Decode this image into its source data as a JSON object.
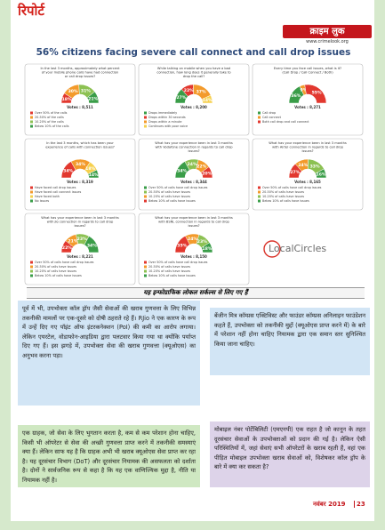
{
  "header": {
    "section": "रिपोर्ट",
    "brand": "क्राइम लुक",
    "url": "www.crimelook.org"
  },
  "title": "56% citizens facing severe call connect and call drop issues",
  "panels": [
    {
      "question": "In the last 3 months, approximately what percent of your mobile phone calls have had connection or call drop issues?",
      "votes": "Votes : 8,511",
      "segments": [
        {
          "value": 18,
          "label": "18%",
          "color": "#e2382f"
        },
        {
          "value": 30,
          "label": "30%",
          "color": "#f39a2b"
        },
        {
          "value": 31,
          "label": "31%",
          "color": "#8cc152"
        },
        {
          "value": 21,
          "label": "21%",
          "color": "#3a9d48"
        }
      ],
      "legend": [
        "Over 50% of the calls",
        "20-50% of the calls",
        "10-20% of the calls",
        "Below 10% of the calls"
      ]
    },
    {
      "question": "While talking on mobile when you have a bad connection, how long does it generally take to drop the call?",
      "votes": "Votes : 8,200",
      "segments": [
        {
          "value": 27,
          "label": "27%",
          "color": "#3a9d48"
        },
        {
          "value": 22,
          "label": "22%",
          "color": "#e2382f"
        },
        {
          "value": 37,
          "label": "37%",
          "color": "#f39a2b"
        },
        {
          "value": 14,
          "label": "14%",
          "color": "#f6d04d"
        }
      ],
      "legend": [
        "Drops immediately",
        "Drops within 30 seconds",
        "Drops within a minute",
        "Continues with poor voice"
      ]
    },
    {
      "question": "Every time you face call issues, what is it? (Call Drop / Call Connect / Both)",
      "votes": "Votes : 8,271",
      "segments": [
        {
          "value": 36,
          "label": "36%",
          "color": "#3a9d48"
        },
        {
          "value": 9,
          "label": "9%",
          "color": "#f39a2b"
        },
        {
          "value": 55,
          "label": "55%",
          "color": "#e2382f"
        }
      ],
      "legend": [
        "Call drop",
        "Call connect",
        "Both call drop and call connect"
      ]
    },
    {
      "question": "In the last 3 months, which has been your experience of calls with connection issues?",
      "votes": "Votes : 8,319",
      "segments": [
        {
          "value": 34,
          "label": "34%",
          "color": "#e2382f"
        },
        {
          "value": 34,
          "label": "34%",
          "color": "#f39a2b"
        },
        {
          "value": 18,
          "label": "18%",
          "color": "#f6d04d"
        },
        {
          "value": 14,
          "label": "14%",
          "color": "#3a9d48"
        }
      ],
      "legend": [
        "Have faced call drop issues",
        "Have faced call connect issues",
        "Have faced both",
        "No issues"
      ]
    },
    {
      "question": "What has your experience been in last 3 months with Vodafone connection in regards to call drop issues?",
      "votes": "Votes : 8,344",
      "segments": [
        {
          "value": 34,
          "label": "34%",
          "color": "#3a9d48"
        },
        {
          "value": 24,
          "label": "24%",
          "color": "#8cc152"
        },
        {
          "value": 22,
          "label": "22%",
          "color": "#f39a2b"
        },
        {
          "value": 20,
          "label": "20%",
          "color": "#e2382f"
        }
      ],
      "legend": [
        "Over 50% of calls have call drop issues",
        "20-50% of calls have issues",
        "10-20% of calls have issues",
        "Below 10% of calls have issues"
      ]
    },
    {
      "question": "What has your experience been in last 3 months with Airtel connection in regards to call drop issues?",
      "votes": "Votes : 8,165",
      "segments": [
        {
          "value": 27,
          "label": "27%",
          "color": "#e2382f"
        },
        {
          "value": 24,
          "label": "24%",
          "color": "#f39a2b"
        },
        {
          "value": 33,
          "label": "33%",
          "color": "#8cc152"
        },
        {
          "value": 16,
          "label": "16%",
          "color": "#3a9d48"
        }
      ],
      "legend": [
        "Over 50% of calls have call drop issues",
        "20-50% of calls have issues",
        "10-20% of calls have issues",
        "Below 10% of calls have issues"
      ]
    },
    {
      "question": "What has your experience been in last 3 months with Jio connection in regards to call drop issues?",
      "votes": "Votes : 8,221",
      "segments": [
        {
          "value": 22,
          "label": "22%",
          "color": "#e2382f"
        },
        {
          "value": 21,
          "label": "21%",
          "color": "#f39a2b"
        },
        {
          "value": 23,
          "label": "23%",
          "color": "#8cc152"
        },
        {
          "value": 34,
          "label": "34%",
          "color": "#3a9d48"
        }
      ],
      "legend": [
        "Over 50% of calls have call drop issues",
        "20-50% of calls have issues",
        "10-20% of calls have issues",
        "Below 10% of calls have issues"
      ]
    },
    {
      "question": "What has your experience been in last 3 months with BSNL connection in regards to call drop issues?",
      "votes": "Votes : 8,150",
      "segments": [
        {
          "value": 35,
          "label": "35%",
          "color": "#e2382f"
        },
        {
          "value": 24,
          "label": "24%",
          "color": "#f39a2b"
        },
        {
          "value": 23,
          "label": "23%",
          "color": "#8cc152"
        },
        {
          "value": 18,
          "label": "18%",
          "color": "#3a9d48"
        }
      ],
      "legend": [
        "Over 50% of calls have call drop issues",
        "20-50% of calls have issues",
        "10-20% of calls have issues",
        "Below 10% of calls have issues"
      ]
    }
  ],
  "logo": "LocalCircles",
  "caption": "यह इन्फोग्राफिक लोकल सर्कल्स से लिए गए हैं",
  "paragraphs": [
    "पूर्व में भी, उपभोक्ता कॉल ड्रॉप जैसी सेवाओं की खराब गुणवत्ता के लिए विभिन्न तकनीकी मामलों पर एक-दूसरे को दोषी ठहराते रहे हैं। RJio ने एक कारण के रूप में उन्हें दिए गए पॉइंट ऑफ इंटरकनेक्शन (PoI) की कमी का आरोप लगाया। लेकिन एयरटेल, वोडाफोन-आइडिया द्वारा पलटवार किया गया था क्योंकि पर्याप्त दिए गए हैं। इस झगड़े में, उपभोक्ता सेवा की खराब गुणवत्ता (क्यूओएस) का अनुभव करना पड़ा।",
    "बेंजीन मित्र कॉम्प्रस एक्टिविस्ट और फाउंडर कॉम्प्रस अनिलाइन फाउंडेशन कहते हैं, उपभोक्ता को तकनीकी मुद्दों (क्यूओएस प्राप्त करने में) के बारे में परेशान नहीं होना चाहिए नियामक द्वारा एक समान स्तर सुनिश्चित किया जाना चाहिए।",
    "एक ग्राहक, जो सेवा के लिए भुगतान करता है, कम से कम परेशान होना चाहिए, किसी भी ऑपरेटर से सेवा की अच्छी गुणवत्ता प्राप्त करने में तकनीकी समस्याएं क्या हैं। लेकिन साफ यह है कि ग्राहक अभी भी खराब क्यूओएस सेवा प्राप्त कर रहा है। यह दूरसंचार विभाग (DoT) और दूरसंचार नियामक की असफलता को दर्शाता है। दोनों ने सार्वजनिक रूप से कहा है कि यह एक वाणिज्यिक मुद्दा है, नीति या नियामक नहीं है।",
    "मोबाइल नंबर पोर्टेबिलिटी (एमएनपी) एक राहत है जो कानून के तहत दूरसंचार सेवाओं के उपभोक्ताओं को प्रदान की गई है। लेकिन ऐसी परिस्थितियों में, जहां सेवाएं सभी ऑपरेटरों के खराब रहती हैं, वहां एक पीड़ित मोबाइल उपभोक्ता खराब सेवाओं को, विशेषकर कॉल ड्रॉप के बारे में क्या कर सकता है?"
  ],
  "footer": {
    "date": "नवंबर 2019",
    "page": "23"
  }
}
